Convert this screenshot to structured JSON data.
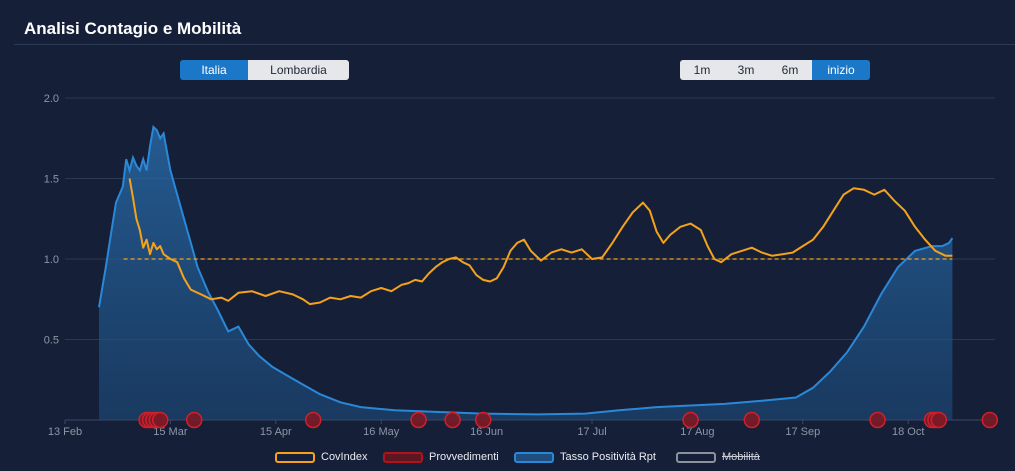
{
  "header": {
    "title": "Analisi Contagio e Mobilità"
  },
  "region_toggle": {
    "options": [
      {
        "label": "Italia",
        "active": true
      },
      {
        "label": "Lombardia",
        "active": false
      }
    ]
  },
  "range_toggle": {
    "options": [
      {
        "label": "1m",
        "active": false
      },
      {
        "label": "3m",
        "active": false
      },
      {
        "label": "6m",
        "active": false
      },
      {
        "label": "inizio",
        "active": true
      }
    ]
  },
  "colors": {
    "background": "#152038",
    "covindex": "#f5a21b",
    "positivity": "#2a88d8",
    "provvedimenti": "#c0161c",
    "mobilita": "#8a929e",
    "active": "#1b78c8"
  },
  "chart_data": {
    "type": "area",
    "x_axis": {
      "type": "date",
      "range": [
        "2020-02-13",
        "2020-10-31"
      ],
      "tick_labels": [
        "13 Feb",
        "15 Mar",
        "15 Apr",
        "16 May",
        "16 Jun",
        "17 Jul",
        "17 Aug",
        "17 Sep",
        "18 Oct"
      ]
    },
    "y_axis": {
      "range": [
        0,
        2.0
      ],
      "tick_labels": [
        "0.5",
        "1.0",
        "1.5",
        "2.0"
      ],
      "grid": true
    },
    "reference_line": {
      "y": 1.0,
      "style": "dashed",
      "color": "#f5a21b"
    },
    "legend": {
      "position": "bottom-center",
      "entries": [
        "CovIndex",
        "Provvedimenti",
        "Tasso Positività Rpt",
        "Mobilità"
      ]
    },
    "series": [
      {
        "name": "CovIndex",
        "kind": "line",
        "color": "#f5a21b",
        "points": [
          [
            "2020-03-03",
            1.5
          ],
          [
            "2020-03-04",
            1.38
          ],
          [
            "2020-03-05",
            1.25
          ],
          [
            "2020-03-06",
            1.18
          ],
          [
            "2020-03-07",
            1.07
          ],
          [
            "2020-03-08",
            1.12
          ],
          [
            "2020-03-09",
            1.03
          ],
          [
            "2020-03-10",
            1.1
          ],
          [
            "2020-03-11",
            1.06
          ],
          [
            "2020-03-12",
            1.08
          ],
          [
            "2020-03-13",
            1.03
          ],
          [
            "2020-03-15",
            1.0
          ],
          [
            "2020-03-17",
            0.98
          ],
          [
            "2020-03-19",
            0.88
          ],
          [
            "2020-03-21",
            0.81
          ],
          [
            "2020-03-24",
            0.78
          ],
          [
            "2020-03-27",
            0.75
          ],
          [
            "2020-03-30",
            0.76
          ],
          [
            "2020-04-01",
            0.74
          ],
          [
            "2020-04-04",
            0.79
          ],
          [
            "2020-04-08",
            0.8
          ],
          [
            "2020-04-12",
            0.77
          ],
          [
            "2020-04-16",
            0.8
          ],
          [
            "2020-04-20",
            0.78
          ],
          [
            "2020-04-23",
            0.75
          ],
          [
            "2020-04-25",
            0.72
          ],
          [
            "2020-04-28",
            0.73
          ],
          [
            "2020-05-01",
            0.76
          ],
          [
            "2020-05-04",
            0.75
          ],
          [
            "2020-05-07",
            0.77
          ],
          [
            "2020-05-10",
            0.76
          ],
          [
            "2020-05-13",
            0.8
          ],
          [
            "2020-05-16",
            0.82
          ],
          [
            "2020-05-19",
            0.8
          ],
          [
            "2020-05-22",
            0.84
          ],
          [
            "2020-05-24",
            0.85
          ],
          [
            "2020-05-26",
            0.87
          ],
          [
            "2020-05-28",
            0.86
          ],
          [
            "2020-05-30",
            0.91
          ],
          [
            "2020-06-01",
            0.95
          ],
          [
            "2020-06-03",
            0.98
          ],
          [
            "2020-06-05",
            1.0
          ],
          [
            "2020-06-07",
            1.01
          ],
          [
            "2020-06-09",
            0.98
          ],
          [
            "2020-06-11",
            0.96
          ],
          [
            "2020-06-13",
            0.9
          ],
          [
            "2020-06-15",
            0.87
          ],
          [
            "2020-06-17",
            0.86
          ],
          [
            "2020-06-19",
            0.88
          ],
          [
            "2020-06-21",
            0.95
          ],
          [
            "2020-06-23",
            1.05
          ],
          [
            "2020-06-25",
            1.1
          ],
          [
            "2020-06-27",
            1.12
          ],
          [
            "2020-06-29",
            1.05
          ],
          [
            "2020-07-02",
            0.99
          ],
          [
            "2020-07-05",
            1.04
          ],
          [
            "2020-07-08",
            1.06
          ],
          [
            "2020-07-11",
            1.04
          ],
          [
            "2020-07-14",
            1.06
          ],
          [
            "2020-07-17",
            1.0
          ],
          [
            "2020-07-20",
            1.01
          ],
          [
            "2020-07-23",
            1.1
          ],
          [
            "2020-07-26",
            1.2
          ],
          [
            "2020-07-29",
            1.29
          ],
          [
            "2020-08-01",
            1.35
          ],
          [
            "2020-08-03",
            1.3
          ],
          [
            "2020-08-05",
            1.17
          ],
          [
            "2020-08-07",
            1.1
          ],
          [
            "2020-08-09",
            1.15
          ],
          [
            "2020-08-12",
            1.2
          ],
          [
            "2020-08-15",
            1.22
          ],
          [
            "2020-08-18",
            1.18
          ],
          [
            "2020-08-20",
            1.08
          ],
          [
            "2020-08-22",
            1.0
          ],
          [
            "2020-08-24",
            0.98
          ],
          [
            "2020-08-27",
            1.03
          ],
          [
            "2020-08-30",
            1.05
          ],
          [
            "2020-09-02",
            1.07
          ],
          [
            "2020-09-05",
            1.04
          ],
          [
            "2020-09-08",
            1.02
          ],
          [
            "2020-09-11",
            1.03
          ],
          [
            "2020-09-14",
            1.04
          ],
          [
            "2020-09-17",
            1.08
          ],
          [
            "2020-09-20",
            1.12
          ],
          [
            "2020-09-23",
            1.2
          ],
          [
            "2020-09-26",
            1.3
          ],
          [
            "2020-09-29",
            1.4
          ],
          [
            "2020-10-02",
            1.44
          ],
          [
            "2020-10-05",
            1.43
          ],
          [
            "2020-10-08",
            1.4
          ],
          [
            "2020-10-11",
            1.43
          ],
          [
            "2020-10-14",
            1.36
          ],
          [
            "2020-10-17",
            1.3
          ],
          [
            "2020-10-20",
            1.2
          ],
          [
            "2020-10-23",
            1.12
          ],
          [
            "2020-10-26",
            1.05
          ],
          [
            "2020-10-29",
            1.02
          ],
          [
            "2020-10-31",
            1.02
          ]
        ]
      },
      {
        "name": "Tasso Positività Rpt",
        "kind": "area",
        "color": "#2a88d8",
        "points": [
          [
            "2020-02-23",
            0.7
          ],
          [
            "2020-02-25",
            0.95
          ],
          [
            "2020-02-27",
            1.22
          ],
          [
            "2020-02-28",
            1.35
          ],
          [
            "2020-03-01",
            1.45
          ],
          [
            "2020-03-02",
            1.62
          ],
          [
            "2020-03-03",
            1.55
          ],
          [
            "2020-03-04",
            1.63
          ],
          [
            "2020-03-05",
            1.58
          ],
          [
            "2020-03-06",
            1.55
          ],
          [
            "2020-03-07",
            1.62
          ],
          [
            "2020-03-08",
            1.55
          ],
          [
            "2020-03-09",
            1.7
          ],
          [
            "2020-03-10",
            1.82
          ],
          [
            "2020-03-11",
            1.8
          ],
          [
            "2020-03-12",
            1.75
          ],
          [
            "2020-03-13",
            1.78
          ],
          [
            "2020-03-15",
            1.55
          ],
          [
            "2020-03-17",
            1.4
          ],
          [
            "2020-03-19",
            1.25
          ],
          [
            "2020-03-21",
            1.1
          ],
          [
            "2020-03-23",
            0.95
          ],
          [
            "2020-03-26",
            0.8
          ],
          [
            "2020-03-29",
            0.68
          ],
          [
            "2020-04-01",
            0.55
          ],
          [
            "2020-04-04",
            0.58
          ],
          [
            "2020-04-07",
            0.47
          ],
          [
            "2020-04-10",
            0.4
          ],
          [
            "2020-04-14",
            0.33
          ],
          [
            "2020-04-18",
            0.28
          ],
          [
            "2020-04-23",
            0.22
          ],
          [
            "2020-04-28",
            0.16
          ],
          [
            "2020-05-04",
            0.11
          ],
          [
            "2020-05-10",
            0.08
          ],
          [
            "2020-05-20",
            0.06
          ],
          [
            "2020-06-01",
            0.05
          ],
          [
            "2020-06-15",
            0.04
          ],
          [
            "2020-07-01",
            0.035
          ],
          [
            "2020-07-15",
            0.04
          ],
          [
            "2020-07-25",
            0.06
          ],
          [
            "2020-08-05",
            0.08
          ],
          [
            "2020-08-15",
            0.09
          ],
          [
            "2020-08-25",
            0.1
          ],
          [
            "2020-09-05",
            0.12
          ],
          [
            "2020-09-15",
            0.14
          ],
          [
            "2020-09-20",
            0.2
          ],
          [
            "2020-09-25",
            0.3
          ],
          [
            "2020-09-30",
            0.42
          ],
          [
            "2020-10-05",
            0.58
          ],
          [
            "2020-10-10",
            0.78
          ],
          [
            "2020-10-15",
            0.95
          ],
          [
            "2020-10-20",
            1.05
          ],
          [
            "2020-10-25",
            1.08
          ],
          [
            "2020-10-28",
            1.08
          ],
          [
            "2020-10-30",
            1.1
          ],
          [
            "2020-10-31",
            1.13
          ]
        ]
      },
      {
        "name": "Provvedimenti",
        "kind": "markers",
        "color": "#c0161c",
        "dates": [
          "2020-03-08",
          "2020-03-09",
          "2020-03-10",
          "2020-03-11",
          "2020-03-12",
          "2020-03-22",
          "2020-04-26",
          "2020-05-27",
          "2020-06-06",
          "2020-06-15",
          "2020-08-15",
          "2020-09-02",
          "2020-10-09",
          "2020-10-25",
          "2020-10-26",
          "2020-10-27",
          "2020-11-11"
        ]
      },
      {
        "name": "Mobilità",
        "kind": "line",
        "hidden": true,
        "color": "#8a929e",
        "points": []
      }
    ]
  }
}
